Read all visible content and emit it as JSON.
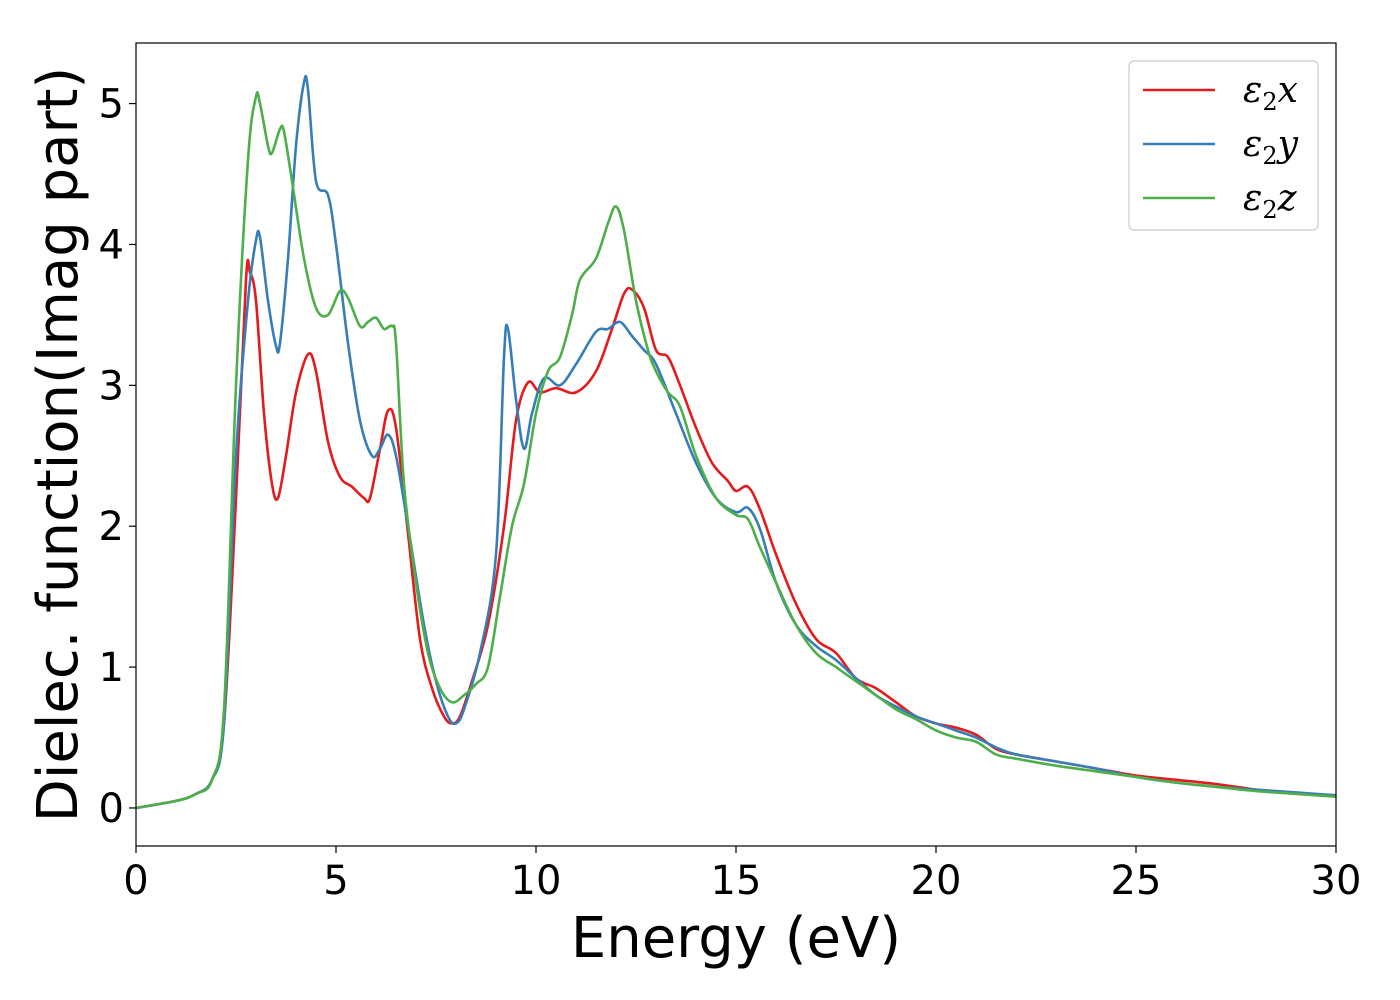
{
  "chart_data": {
    "type": "line",
    "title": "",
    "xlabel": "Energy (eV)",
    "ylabel": "Dielec. function(Imag part)",
    "xlim": [
      0,
      30
    ],
    "ylim": [
      -0.27,
      5.43
    ],
    "xticks": [
      0,
      5,
      10,
      15,
      20,
      25,
      30
    ],
    "yticks": [
      0,
      1,
      2,
      3,
      4,
      5
    ],
    "grid": false,
    "legend_position": "top-right",
    "series": [
      {
        "name": "ε₂x",
        "legend_base": "ε",
        "legend_sub": "2",
        "legend_suffix": "x",
        "color": "#e41a1c",
        "points": [
          [
            0,
            0
          ],
          [
            1,
            0.05
          ],
          [
            1.5,
            0.1
          ],
          [
            1.9,
            0.2
          ],
          [
            2.2,
            0.6
          ],
          [
            2.5,
            2.2
          ],
          [
            2.75,
            3.75
          ],
          [
            2.85,
            3.8
          ],
          [
            3.0,
            3.6
          ],
          [
            3.2,
            2.8
          ],
          [
            3.4,
            2.3
          ],
          [
            3.55,
            2.2
          ],
          [
            3.75,
            2.5
          ],
          [
            4.0,
            2.95
          ],
          [
            4.3,
            3.22
          ],
          [
            4.5,
            3.1
          ],
          [
            4.8,
            2.6
          ],
          [
            5.1,
            2.35
          ],
          [
            5.4,
            2.28
          ],
          [
            5.7,
            2.2
          ],
          [
            5.85,
            2.2
          ],
          [
            6.1,
            2.55
          ],
          [
            6.3,
            2.82
          ],
          [
            6.5,
            2.7
          ],
          [
            6.8,
            1.95
          ],
          [
            7.1,
            1.2
          ],
          [
            7.4,
            0.85
          ],
          [
            7.7,
            0.65
          ],
          [
            7.9,
            0.6
          ],
          [
            8.1,
            0.65
          ],
          [
            8.4,
            0.9
          ],
          [
            8.8,
            1.3
          ],
          [
            9.2,
            2.0
          ],
          [
            9.5,
            2.75
          ],
          [
            9.8,
            3.02
          ],
          [
            10.1,
            2.95
          ],
          [
            10.5,
            2.98
          ],
          [
            11.0,
            2.95
          ],
          [
            11.5,
            3.1
          ],
          [
            11.9,
            3.4
          ],
          [
            12.2,
            3.65
          ],
          [
            12.4,
            3.68
          ],
          [
            12.7,
            3.55
          ],
          [
            13.0,
            3.25
          ],
          [
            13.3,
            3.2
          ],
          [
            13.6,
            3.0
          ],
          [
            14.0,
            2.7
          ],
          [
            14.4,
            2.45
          ],
          [
            14.8,
            2.32
          ],
          [
            15.0,
            2.25
          ],
          [
            15.3,
            2.28
          ],
          [
            15.6,
            2.12
          ],
          [
            16.0,
            1.8
          ],
          [
            16.5,
            1.45
          ],
          [
            17.0,
            1.2
          ],
          [
            17.5,
            1.1
          ],
          [
            18.0,
            0.92
          ],
          [
            18.5,
            0.85
          ],
          [
            19.0,
            0.75
          ],
          [
            19.5,
            0.65
          ],
          [
            20.0,
            0.6
          ],
          [
            20.5,
            0.57
          ],
          [
            21.0,
            0.52
          ],
          [
            21.5,
            0.42
          ],
          [
            22.0,
            0.38
          ],
          [
            23.0,
            0.33
          ],
          [
            24.0,
            0.28
          ],
          [
            25.0,
            0.23
          ],
          [
            26.0,
            0.2
          ],
          [
            27.0,
            0.17
          ],
          [
            28.0,
            0.13
          ],
          [
            29.0,
            0.1
          ],
          [
            30.0,
            0.09
          ]
        ]
      },
      {
        "name": "ε₂y",
        "legend_base": "ε",
        "legend_sub": "2",
        "legend_suffix": "y",
        "color": "#377eb8",
        "points": [
          [
            0,
            0
          ],
          [
            1,
            0.05
          ],
          [
            1.5,
            0.1
          ],
          [
            1.9,
            0.2
          ],
          [
            2.2,
            0.6
          ],
          [
            2.5,
            2.5
          ],
          [
            2.8,
            3.6
          ],
          [
            3.0,
            4.03
          ],
          [
            3.1,
            4.05
          ],
          [
            3.3,
            3.6
          ],
          [
            3.5,
            3.28
          ],
          [
            3.6,
            3.3
          ],
          [
            3.8,
            3.9
          ],
          [
            4.0,
            4.7
          ],
          [
            4.2,
            5.15
          ],
          [
            4.3,
            5.1
          ],
          [
            4.5,
            4.45
          ],
          [
            4.8,
            4.35
          ],
          [
            5.0,
            4.0
          ],
          [
            5.3,
            3.3
          ],
          [
            5.6,
            2.75
          ],
          [
            5.9,
            2.5
          ],
          [
            6.1,
            2.55
          ],
          [
            6.3,
            2.65
          ],
          [
            6.5,
            2.5
          ],
          [
            6.8,
            2.0
          ],
          [
            7.2,
            1.3
          ],
          [
            7.5,
            0.9
          ],
          [
            7.8,
            0.65
          ],
          [
            8.0,
            0.6
          ],
          [
            8.2,
            0.7
          ],
          [
            8.6,
            1.1
          ],
          [
            9.0,
            1.8
          ],
          [
            9.2,
            3.2
          ],
          [
            9.3,
            3.4
          ],
          [
            9.5,
            2.9
          ],
          [
            9.7,
            2.55
          ],
          [
            9.9,
            2.8
          ],
          [
            10.2,
            3.05
          ],
          [
            10.6,
            3.0
          ],
          [
            11.0,
            3.15
          ],
          [
            11.5,
            3.38
          ],
          [
            11.8,
            3.4
          ],
          [
            12.1,
            3.45
          ],
          [
            12.4,
            3.35
          ],
          [
            12.7,
            3.25
          ],
          [
            13.0,
            3.15
          ],
          [
            13.5,
            2.8
          ],
          [
            14.0,
            2.45
          ],
          [
            14.5,
            2.2
          ],
          [
            15.0,
            2.1
          ],
          [
            15.3,
            2.13
          ],
          [
            15.6,
            1.98
          ],
          [
            16.0,
            1.6
          ],
          [
            16.5,
            1.3
          ],
          [
            17.0,
            1.15
          ],
          [
            17.5,
            1.05
          ],
          [
            18.0,
            0.92
          ],
          [
            18.5,
            0.8
          ],
          [
            19.0,
            0.72
          ],
          [
            19.5,
            0.65
          ],
          [
            20.0,
            0.6
          ],
          [
            20.5,
            0.55
          ],
          [
            21.0,
            0.5
          ],
          [
            21.5,
            0.43
          ],
          [
            22.0,
            0.38
          ],
          [
            23.0,
            0.33
          ],
          [
            24.0,
            0.28
          ],
          [
            25.0,
            0.22
          ],
          [
            26.0,
            0.18
          ],
          [
            27.0,
            0.15
          ],
          [
            28.0,
            0.13
          ],
          [
            29.0,
            0.11
          ],
          [
            30.0,
            0.09
          ]
        ]
      },
      {
        "name": "ε₂z",
        "legend_base": "ε",
        "legend_sub": "2",
        "legend_suffix": "z",
        "color": "#4daf4a",
        "points": [
          [
            0,
            0
          ],
          [
            1,
            0.05
          ],
          [
            1.5,
            0.1
          ],
          [
            1.9,
            0.2
          ],
          [
            2.2,
            0.7
          ],
          [
            2.5,
            3.0
          ],
          [
            2.8,
            4.6
          ],
          [
            3.0,
            5.05
          ],
          [
            3.1,
            5.0
          ],
          [
            3.3,
            4.7
          ],
          [
            3.4,
            4.65
          ],
          [
            3.6,
            4.82
          ],
          [
            3.7,
            4.8
          ],
          [
            3.9,
            4.45
          ],
          [
            4.2,
            3.9
          ],
          [
            4.5,
            3.55
          ],
          [
            4.8,
            3.5
          ],
          [
            5.1,
            3.67
          ],
          [
            5.3,
            3.62
          ],
          [
            5.6,
            3.42
          ],
          [
            5.8,
            3.45
          ],
          [
            6.0,
            3.48
          ],
          [
            6.2,
            3.4
          ],
          [
            6.4,
            3.42
          ],
          [
            6.5,
            3.3
          ],
          [
            6.7,
            2.3
          ],
          [
            7.0,
            1.6
          ],
          [
            7.3,
            1.1
          ],
          [
            7.6,
            0.85
          ],
          [
            7.9,
            0.75
          ],
          [
            8.2,
            0.8
          ],
          [
            8.5,
            0.88
          ],
          [
            8.8,
            1.0
          ],
          [
            9.1,
            1.5
          ],
          [
            9.4,
            2.0
          ],
          [
            9.7,
            2.3
          ],
          [
            10.0,
            2.8
          ],
          [
            10.3,
            3.1
          ],
          [
            10.6,
            3.2
          ],
          [
            10.9,
            3.5
          ],
          [
            11.1,
            3.75
          ],
          [
            11.5,
            3.9
          ],
          [
            11.8,
            4.15
          ],
          [
            12.0,
            4.27
          ],
          [
            12.2,
            4.1
          ],
          [
            12.5,
            3.6
          ],
          [
            12.8,
            3.25
          ],
          [
            13.0,
            3.1
          ],
          [
            13.3,
            2.95
          ],
          [
            13.6,
            2.85
          ],
          [
            14.0,
            2.5
          ],
          [
            14.5,
            2.2
          ],
          [
            15.0,
            2.08
          ],
          [
            15.3,
            2.05
          ],
          [
            15.6,
            1.85
          ],
          [
            16.0,
            1.6
          ],
          [
            16.5,
            1.3
          ],
          [
            17.0,
            1.1
          ],
          [
            17.5,
            1.0
          ],
          [
            18.0,
            0.9
          ],
          [
            18.5,
            0.8
          ],
          [
            19.0,
            0.7
          ],
          [
            19.5,
            0.63
          ],
          [
            20.0,
            0.55
          ],
          [
            20.5,
            0.5
          ],
          [
            21.0,
            0.47
          ],
          [
            21.5,
            0.38
          ],
          [
            22.0,
            0.35
          ],
          [
            23.0,
            0.3
          ],
          [
            24.0,
            0.26
          ],
          [
            25.0,
            0.22
          ],
          [
            26.0,
            0.18
          ],
          [
            27.0,
            0.15
          ],
          [
            28.0,
            0.12
          ],
          [
            29.0,
            0.1
          ],
          [
            30.0,
            0.08
          ]
        ]
      }
    ]
  }
}
